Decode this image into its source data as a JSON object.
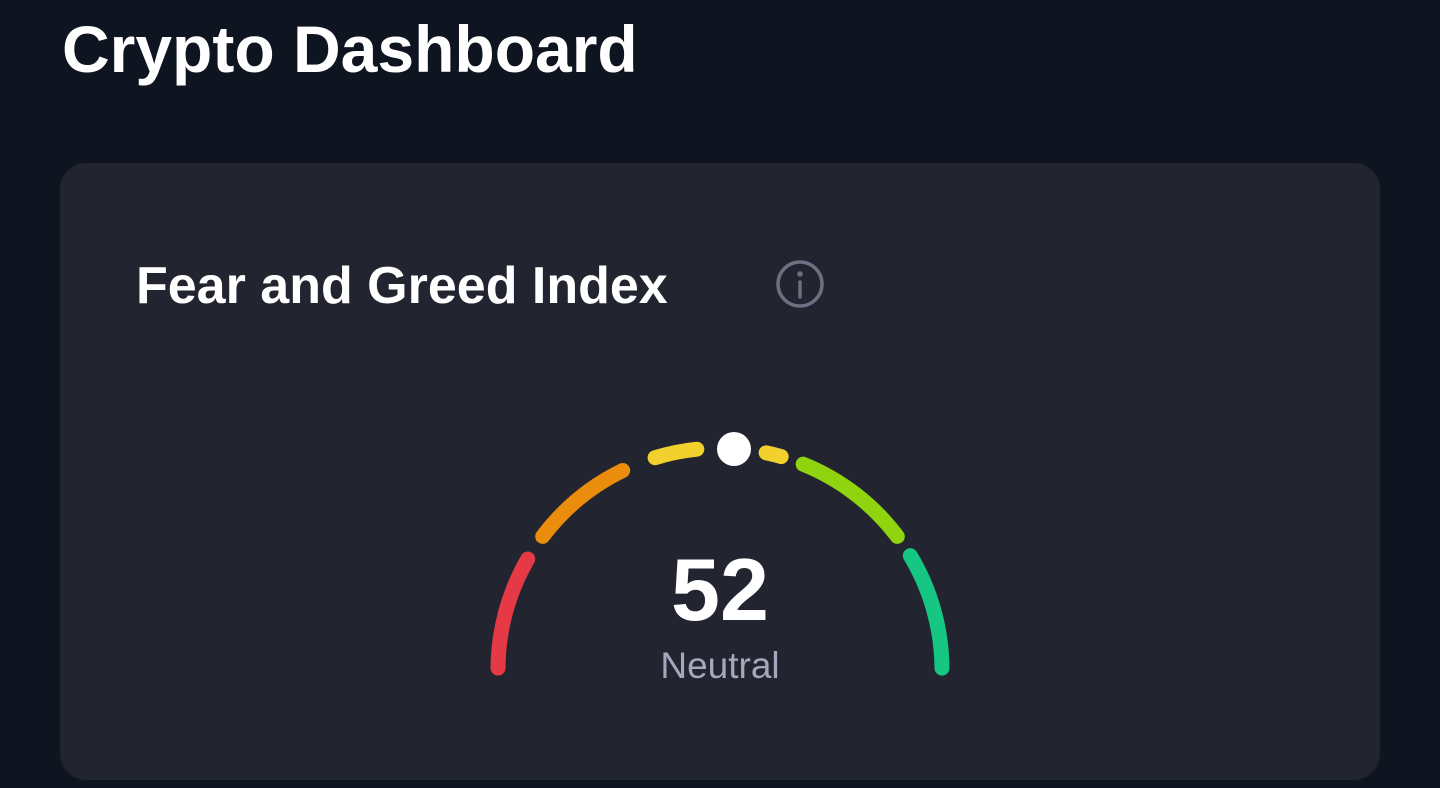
{
  "header": {
    "title": "Crypto Dashboard"
  },
  "card": {
    "title": "Fear and Greed Index",
    "gauge": {
      "value": "52",
      "label": "Neutral"
    }
  }
}
